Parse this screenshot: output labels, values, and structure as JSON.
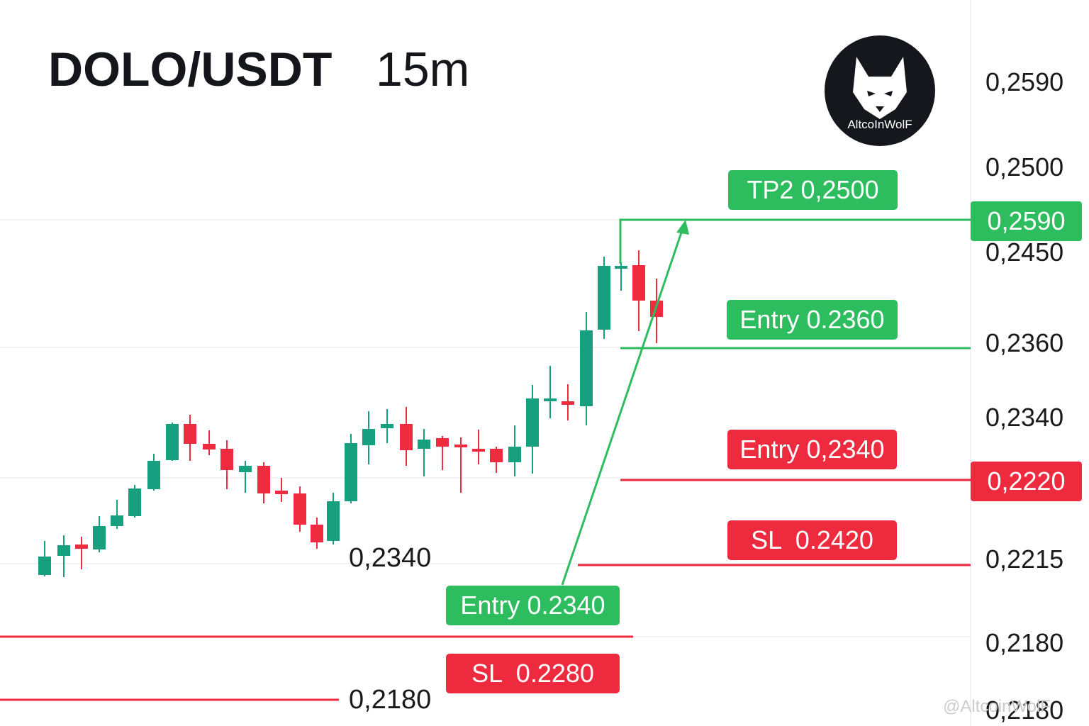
{
  "header": {
    "pair": "DOLO/USDT",
    "interval": "15m"
  },
  "logo": {
    "text": "AltcoInWolF"
  },
  "price_axis": {
    "labels": [
      "0,2590",
      "0,2500",
      "0,2450",
      "0,2360",
      "0,2340",
      "0,2215",
      "0,2180",
      "0,2180"
    ],
    "badges": [
      "0,2590",
      "0,2220"
    ]
  },
  "annotations": [
    "TP2 0,2500",
    "Entry 0.2360",
    "Entry 0,2340",
    "SL  0.2420",
    "Entry 0.2340",
    "SL  0.2280"
  ],
  "level_labels": [
    "0,2340",
    "0,2180"
  ],
  "watermark": "@AltcoinWolF"
}
